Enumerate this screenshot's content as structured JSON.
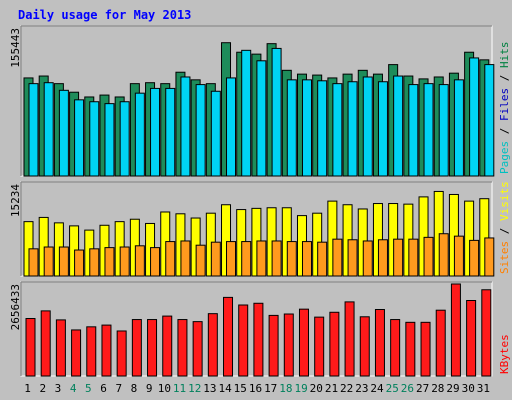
{
  "title": "Daily usage for May 2013",
  "chart_data": [
    {
      "type": "bar",
      "title": "Daily usage for May 2013",
      "categories": [
        "1",
        "2",
        "3",
        "4",
        "5",
        "6",
        "7",
        "8",
        "9",
        "10",
        "11",
        "12",
        "13",
        "14",
        "15",
        "16",
        "17",
        "18",
        "19",
        "20",
        "21",
        "22",
        "23",
        "24",
        "25",
        "26",
        "27",
        "28",
        "29",
        "30",
        "31"
      ],
      "weekend_days": [
        "4",
        "5",
        "11",
        "12",
        "18",
        "19",
        "25",
        "26"
      ],
      "ymax_label": "155443",
      "ylim": [
        0,
        155443
      ],
      "legend": [
        {
          "name": "Pages",
          "color": "#00c0c0"
        },
        {
          "name": "Files",
          "color": "#0000c0"
        },
        {
          "name": "Hits",
          "color": "#008040"
        }
      ],
      "series": [
        {
          "name": "Hits",
          "color": "#1e8c5a",
          "values": [
            103000,
            105000,
            97000,
            88000,
            83000,
            85000,
            83000,
            97000,
            98000,
            97000,
            109000,
            101000,
            97000,
            140000,
            130000,
            128000,
            139000,
            111000,
            107000,
            106000,
            103000,
            107000,
            111000,
            107000,
            117000,
            105000,
            102000,
            104000,
            108000,
            130000,
            122000
          ]
        },
        {
          "name": "Files",
          "color": "#00d4f4",
          "values": [
            97000,
            98000,
            90000,
            80000,
            78000,
            76000,
            78000,
            87000,
            92000,
            92000,
            104000,
            96000,
            89000,
            103000,
            132000,
            121000,
            134000,
            101000,
            101000,
            100000,
            97000,
            99000,
            104000,
            99000,
            105000,
            96000,
            97000,
            96000,
            101000,
            124000,
            117000
          ]
        }
      ]
    },
    {
      "type": "bar",
      "ymax_label": "15234",
      "ylim": [
        0,
        15234
      ],
      "legend": [
        {
          "name": "Sites",
          "color": "#ff8000"
        },
        {
          "name": "Visits",
          "color": "#ffff00"
        }
      ],
      "series": [
        {
          "name": "Visits",
          "color": "#ffff00",
          "values": [
            9000,
            9700,
            8800,
            8300,
            7600,
            8400,
            9000,
            9400,
            8700,
            10600,
            10300,
            9600,
            10400,
            11800,
            11000,
            11200,
            11300,
            11300,
            10000,
            10400,
            12400,
            11800,
            11100,
            12000,
            12000,
            11900,
            13100,
            14000,
            13500,
            12400,
            12800
          ]
        },
        {
          "name": "Sites",
          "color": "#ff9a1e",
          "values": [
            4500,
            4800,
            4800,
            4300,
            4500,
            4700,
            4800,
            5000,
            4700,
            5700,
            5800,
            5100,
            5600,
            5700,
            5700,
            5800,
            5800,
            5700,
            5700,
            5600,
            6100,
            6000,
            5800,
            6000,
            6100,
            6100,
            6400,
            7000,
            6600,
            5900,
            6300
          ]
        }
      ]
    },
    {
      "type": "bar",
      "ymax_label": "2656433",
      "ylim": [
        0,
        2656433
      ],
      "legend": [
        {
          "name": "KBytes",
          "color": "#ff0000"
        }
      ],
      "series": [
        {
          "name": "KBytes",
          "color": "#ff1a1a",
          "values": [
            1660000,
            1880000,
            1620000,
            1330000,
            1420000,
            1470000,
            1300000,
            1630000,
            1630000,
            1730000,
            1630000,
            1570000,
            1800000,
            2270000,
            2050000,
            2100000,
            1750000,
            1790000,
            1930000,
            1700000,
            1840000,
            2140000,
            1710000,
            1920000,
            1630000,
            1550000,
            1550000,
            1900000,
            2656433,
            2180000,
            2490000
          ]
        }
      ]
    }
  ]
}
